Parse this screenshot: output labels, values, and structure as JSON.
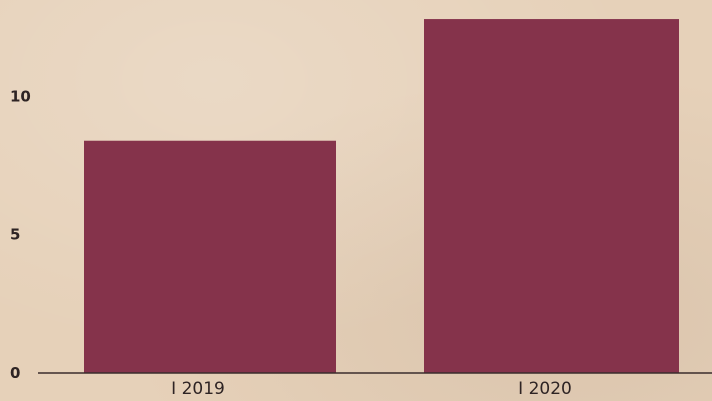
{
  "chart_data": {
    "type": "bar",
    "categories": [
      "I 2019",
      "I 2020"
    ],
    "values": [
      8.4,
      12.8
    ],
    "ylim": [
      0,
      13.2
    ],
    "yticks": [
      0,
      5,
      10
    ],
    "grid": false,
    "title": "",
    "xlabel": "",
    "ylabel": ""
  },
  "colors": {
    "bar": "#85334b",
    "axis": "#3a2c2c",
    "background": "#e6d1b9"
  }
}
